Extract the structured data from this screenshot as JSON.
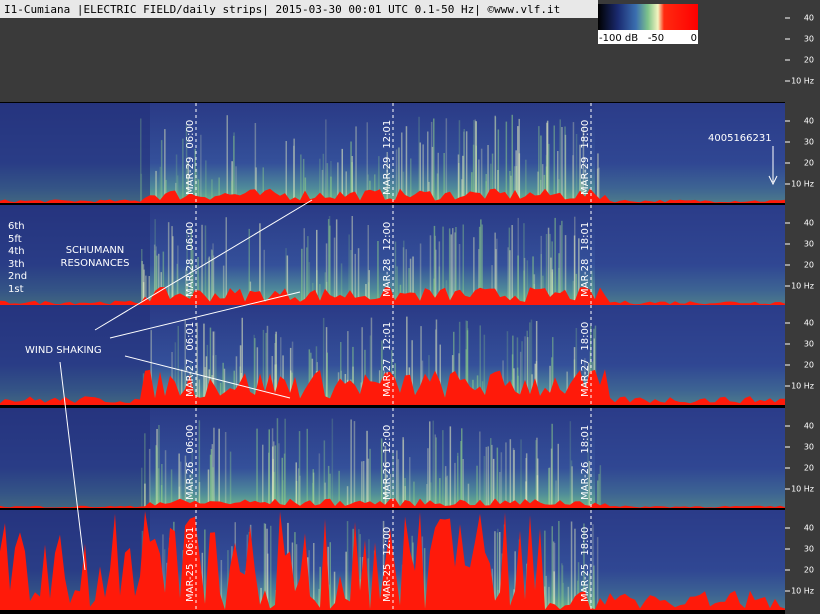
{
  "header": {
    "title": "I1-Cumiana |ELECTRIC FIELD/daily strips| 2015-03-30 00:01 UTC 0.1-50 Hz| ©www.vlf.it"
  },
  "colorbar": {
    "labels": [
      "-100 dB",
      "-50",
      "0"
    ]
  },
  "frequency_axis": {
    "ticks": [
      "40",
      "30",
      "20",
      "10 Hz"
    ]
  },
  "strips": [
    {
      "date": "MAR-29",
      "times": [
        "06:00",
        "12:01",
        "18:00"
      ]
    },
    {
      "date": "MAR-28",
      "times": [
        "06:00",
        "12:00",
        "18:01"
      ]
    },
    {
      "date": "MAR-27",
      "times": [
        "06:01",
        "12:01",
        "18:00"
      ]
    },
    {
      "date": "MAR-26",
      "times": [
        "06:00",
        "12:00",
        "18:01"
      ]
    },
    {
      "date": "MAR-25",
      "times": [
        "06:01",
        "12:00",
        "18:00"
      ]
    }
  ],
  "annotations": {
    "sensor_id": "4005166231",
    "schumann_orders": [
      "6th",
      "5ft",
      "4th",
      "3th",
      "2nd",
      "1st"
    ],
    "schumann_label": [
      "SCHUMANN",
      "RESONANCES"
    ],
    "wind_label": "WIND SHAKING"
  }
}
